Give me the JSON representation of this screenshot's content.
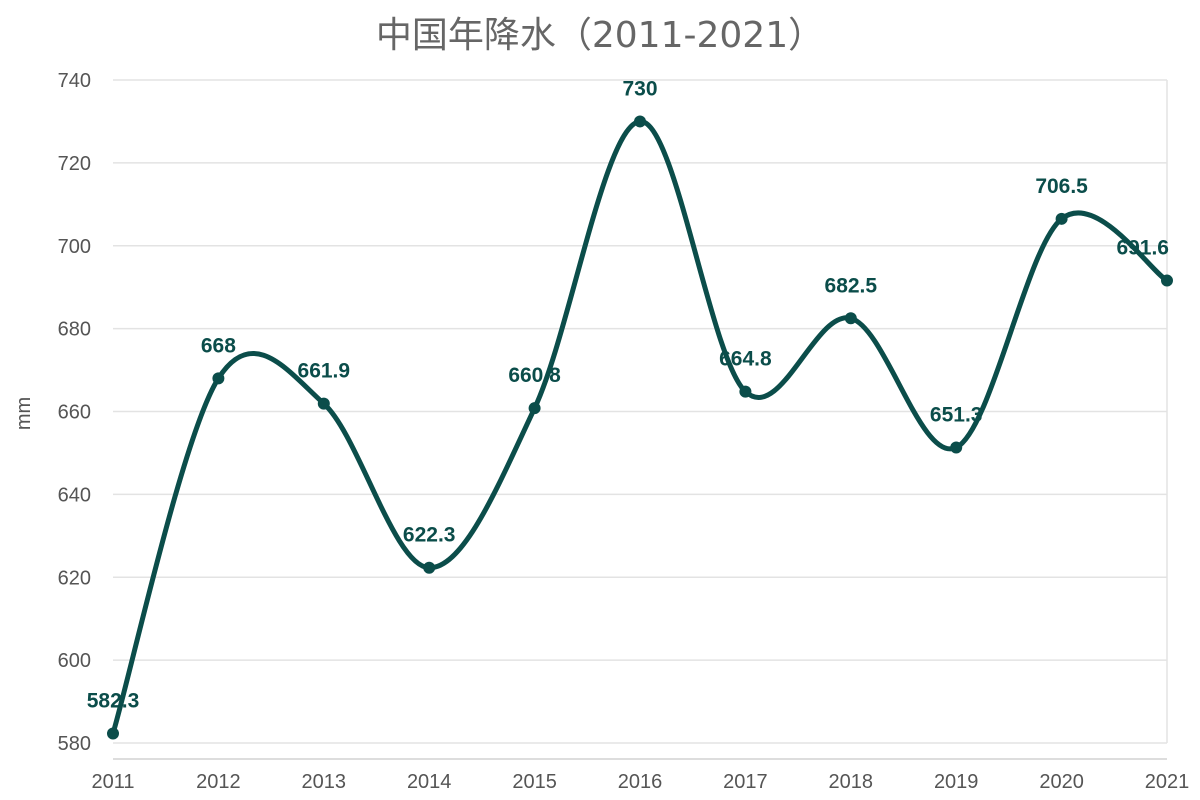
{
  "chart_data": {
    "type": "line",
    "title": "中国年降水（2011-2021）",
    "xlabel": "",
    "ylabel": "mm",
    "categories": [
      "2011",
      "2012",
      "2013",
      "2014",
      "2015",
      "2016",
      "2017",
      "2018",
      "2019",
      "2020",
      "2021"
    ],
    "series": [
      {
        "values": [
          582.3,
          668,
          661.9,
          622.3,
          660.8,
          730,
          664.8,
          682.5,
          651.3,
          706.5,
          691.6
        ]
      }
    ],
    "data_labels": [
      "582.3",
      "668",
      "661.9",
      "622.3",
      "660.8",
      "730",
      "664.8",
      "682.5",
      "651.3",
      "706.5",
      "691.6"
    ],
    "ylim": [
      580,
      740
    ],
    "yticks": [
      580,
      600,
      620,
      640,
      660,
      680,
      700,
      720,
      740
    ],
    "ytick_labels": [
      "580",
      "600",
      "620",
      "640",
      "660",
      "680",
      "700",
      "720",
      "740"
    ],
    "line_style": "smooth",
    "grid": true,
    "legend": false,
    "colors": {
      "line": "#0b4d4a",
      "grid": "#e3e3e3",
      "axis_text": "#555555",
      "title": "#666666"
    }
  }
}
